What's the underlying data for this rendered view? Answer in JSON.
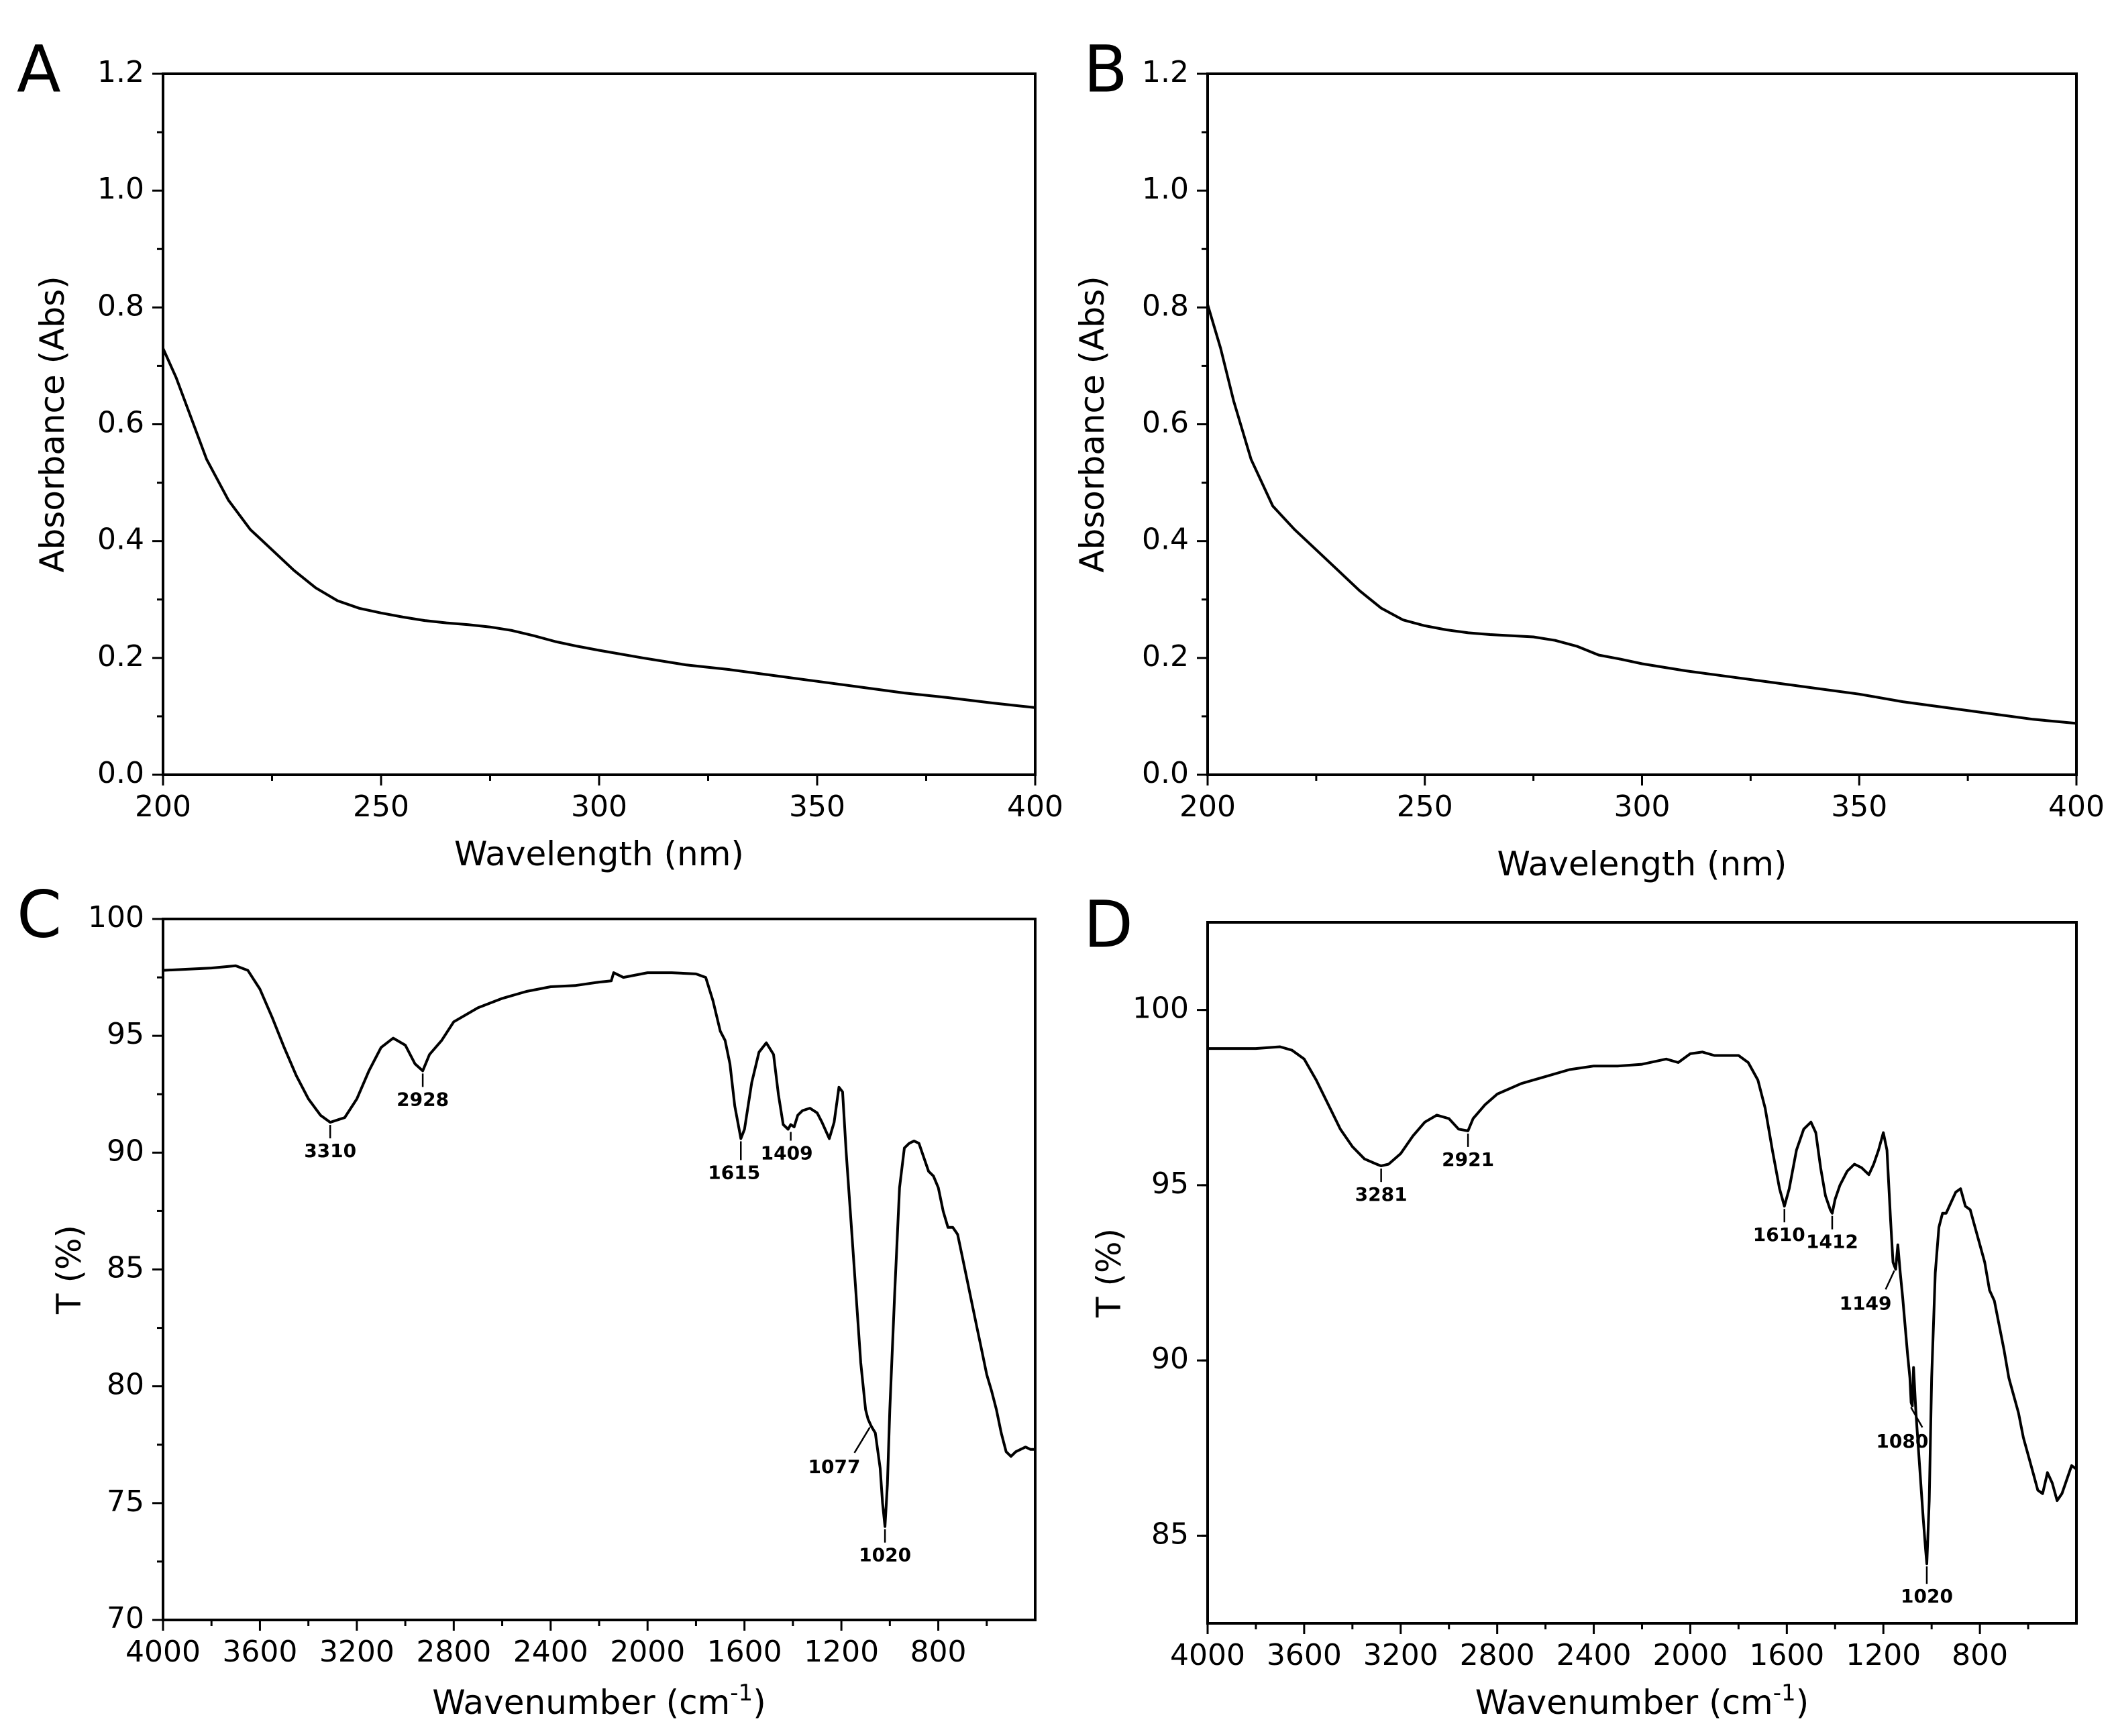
{
  "chart_data": [
    {
      "panel": "A",
      "type": "line",
      "title": "",
      "xlabel": "Wavelength (nm)",
      "ylabel": "Absorbance (Abs)",
      "xlim": [
        200,
        400
      ],
      "ylim": [
        0,
        1.2
      ],
      "x_reversed": false,
      "xticks": [
        200,
        250,
        300,
        350,
        400
      ],
      "xtick_labels": [
        "200",
        "250",
        "300",
        "350",
        "400"
      ],
      "yticks": [
        0,
        0.2,
        0.4,
        0.6,
        0.8,
        1.0,
        1.2
      ],
      "ytick_labels": [
        "0.0",
        "0.2",
        "0.4",
        "0.6",
        "0.8",
        "1.0",
        "1.2"
      ],
      "grid": false,
      "series": [
        {
          "name": "UV spectrum",
          "x": [
            200,
            203,
            206,
            210,
            215,
            220,
            225,
            230,
            235,
            240,
            245,
            250,
            255,
            260,
            265,
            270,
            275,
            280,
            285,
            290,
            295,
            300,
            310,
            320,
            330,
            340,
            350,
            360,
            370,
            380,
            390,
            400
          ],
          "y": [
            0.73,
            0.68,
            0.62,
            0.54,
            0.47,
            0.42,
            0.385,
            0.35,
            0.32,
            0.298,
            0.285,
            0.277,
            0.27,
            0.264,
            0.26,
            0.257,
            0.253,
            0.247,
            0.238,
            0.228,
            0.22,
            0.213,
            0.2,
            0.188,
            0.18,
            0.17,
            0.16,
            0.15,
            0.14,
            0.132,
            0.123,
            0.115
          ]
        }
      ],
      "annotations": []
    },
    {
      "panel": "B",
      "type": "line",
      "title": "",
      "xlabel": "Wavelength (nm)",
      "ylabel": "Absorbance (Abs)",
      "xlim": [
        200,
        400
      ],
      "ylim": [
        0,
        1.2
      ],
      "x_reversed": false,
      "xticks": [
        200,
        250,
        300,
        350,
        400
      ],
      "xtick_labels": [
        "200",
        "250",
        "300",
        "350",
        "400"
      ],
      "yticks": [
        0,
        0.2,
        0.4,
        0.6,
        0.8,
        1.0,
        1.2
      ],
      "ytick_labels": [
        "0.0",
        "0.2",
        "0.4",
        "0.6",
        "0.8",
        "1.0",
        "1.2"
      ],
      "grid": false,
      "series": [
        {
          "name": "UV spectrum",
          "x": [
            200,
            203,
            206,
            210,
            215,
            220,
            225,
            230,
            235,
            240,
            245,
            250,
            255,
            260,
            265,
            270,
            275,
            280,
            285,
            290,
            295,
            300,
            310,
            320,
            330,
            340,
            350,
            360,
            370,
            380,
            390,
            400
          ],
          "y": [
            0.805,
            0.73,
            0.64,
            0.54,
            0.46,
            0.42,
            0.385,
            0.35,
            0.315,
            0.285,
            0.265,
            0.255,
            0.248,
            0.243,
            0.24,
            0.238,
            0.236,
            0.23,
            0.22,
            0.205,
            0.198,
            0.19,
            0.178,
            0.168,
            0.158,
            0.148,
            0.138,
            0.125,
            0.115,
            0.105,
            0.095,
            0.088
          ]
        }
      ],
      "annotations": []
    },
    {
      "panel": "C",
      "type": "line",
      "title": "",
      "xlabel": "Wavenumber (cm",
      "xlabel_sup": "-1",
      "xlabel_end": ")",
      "ylabel": "T (%)",
      "xlim": [
        4000,
        400
      ],
      "ylim": [
        70,
        100
      ],
      "x_reversed": true,
      "xticks": [
        4000,
        3600,
        3200,
        2800,
        2400,
        2000,
        1600,
        1200,
        800
      ],
      "xtick_labels": [
        "4000",
        "3600",
        "3200",
        "2800",
        "2400",
        "2000",
        "1600",
        "1200",
        "800"
      ],
      "yticks": [
        70,
        75,
        80,
        85,
        90,
        95,
        100
      ],
      "ytick_labels": [
        "70",
        "75",
        "80",
        "85",
        "90",
        "95",
        "100"
      ],
      "grid": false,
      "series": [
        {
          "name": "FT-IR spectrum",
          "x": [
            4000,
            3900,
            3800,
            3700,
            3650,
            3600,
            3550,
            3500,
            3450,
            3400,
            3350,
            3310,
            3250,
            3200,
            3150,
            3100,
            3050,
            3000,
            2960,
            2928,
            2900,
            2850,
            2800,
            2700,
            2600,
            2500,
            2400,
            2300,
            2200,
            2150,
            2140,
            2100,
            2000,
            1900,
            1800,
            1760,
            1730,
            1700,
            1680,
            1660,
            1640,
            1615,
            1600,
            1570,
            1540,
            1510,
            1480,
            1460,
            1440,
            1420,
            1409,
            1395,
            1380,
            1360,
            1330,
            1300,
            1280,
            1250,
            1230,
            1210,
            1195,
            1180,
            1160,
            1140,
            1120,
            1100,
            1090,
            1077,
            1060,
            1040,
            1030,
            1020,
            1010,
            1000,
            980,
            960,
            940,
            920,
            900,
            880,
            860,
            840,
            820,
            800,
            780,
            760,
            740,
            720,
            700,
            680,
            660,
            640,
            620,
            600,
            580,
            560,
            540,
            520,
            500,
            480,
            460,
            440,
            420,
            400
          ],
          "y": [
            97.8,
            97.85,
            97.9,
            98.0,
            97.8,
            97.0,
            95.8,
            94.5,
            93.3,
            92.3,
            91.6,
            91.3,
            91.5,
            92.3,
            93.5,
            94.5,
            94.9,
            94.6,
            93.8,
            93.5,
            94.2,
            94.8,
            95.6,
            96.2,
            96.6,
            96.9,
            97.1,
            97.15,
            97.3,
            97.35,
            97.7,
            97.5,
            97.7,
            97.7,
            97.65,
            97.5,
            96.5,
            95.2,
            94.8,
            93.8,
            92.0,
            90.6,
            91.0,
            93.0,
            94.3,
            94.7,
            94.2,
            92.5,
            91.2,
            91.0,
            91.2,
            91.1,
            91.6,
            91.8,
            91.9,
            91.7,
            91.3,
            90.6,
            91.3,
            92.8,
            92.6,
            90.0,
            87.0,
            84.0,
            81.0,
            79.0,
            78.6,
            78.3,
            78.0,
            76.5,
            75.0,
            74.0,
            75.8,
            79.0,
            84.0,
            88.5,
            90.2,
            90.4,
            90.5,
            90.4,
            89.8,
            89.2,
            89.0,
            88.5,
            87.5,
            86.8,
            86.8,
            86.5,
            85.5,
            84.5,
            83.5,
            82.5,
            81.5,
            80.5,
            79.8,
            79.0,
            78.0,
            77.2,
            77.0,
            77.2,
            77.3,
            77.4,
            77.3,
            77.3
          ]
        }
      ],
      "annotations": [
        {
          "label": "3310",
          "x": 3310,
          "y": 91.3
        },
        {
          "label": "2928",
          "x": 2928,
          "y": 93.5
        },
        {
          "label": "1615",
          "x": 1615,
          "y": 90.6
        },
        {
          "label": "1409",
          "x": 1409,
          "y": 91.0
        },
        {
          "label": "1077",
          "x": 1077,
          "y": 78.3
        },
        {
          "label": "1020",
          "x": 1020,
          "y": 74.0
        }
      ]
    },
    {
      "panel": "D",
      "type": "line",
      "title": "",
      "xlabel": "Wavenumber (cm",
      "xlabel_sup": "-1",
      "xlabel_end": ")",
      "ylabel": "T (%)",
      "xlim": [
        4000,
        400
      ],
      "ylim": [
        82.5,
        102.5
      ],
      "x_reversed": true,
      "xticks": [
        4000,
        3600,
        3200,
        2800,
        2400,
        2000,
        1600,
        1200,
        800
      ],
      "xtick_labels": [
        "4000",
        "3600",
        "3200",
        "2800",
        "2400",
        "2000",
        "1600",
        "1200",
        "800"
      ],
      "yticks": [
        85,
        90,
        95,
        100
      ],
      "ytick_labels": [
        "85",
        "90",
        "95",
        "100"
      ],
      "grid": false,
      "series": [
        {
          "name": "FT-IR spectrum",
          "x": [
            4000,
            3900,
            3800,
            3700,
            3650,
            3600,
            3550,
            3500,
            3450,
            3400,
            3350,
            3300,
            3281,
            3250,
            3200,
            3150,
            3100,
            3050,
            3000,
            2960,
            2921,
            2900,
            2850,
            2800,
            2700,
            2600,
            2500,
            2400,
            2300,
            2200,
            2100,
            2050,
            2000,
            1950,
            1900,
            1800,
            1760,
            1720,
            1690,
            1660,
            1630,
            1610,
            1590,
            1560,
            1530,
            1500,
            1480,
            1460,
            1440,
            1420,
            1412,
            1400,
            1380,
            1350,
            1320,
            1290,
            1260,
            1240,
            1220,
            1200,
            1185,
            1170,
            1160,
            1149,
            1140,
            1130,
            1120,
            1110,
            1100,
            1090,
            1085,
            1080,
            1075,
            1065,
            1050,
            1035,
            1025,
            1020,
            1010,
            1000,
            985,
            970,
            955,
            940,
            920,
            900,
            880,
            860,
            840,
            820,
            800,
            780,
            760,
            740,
            720,
            700,
            680,
            660,
            640,
            620,
            600,
            580,
            560,
            540,
            520,
            500,
            480,
            460,
            440,
            420,
            400
          ],
          "y": [
            98.9,
            98.9,
            98.9,
            98.95,
            98.85,
            98.6,
            98.0,
            97.3,
            96.6,
            96.1,
            95.75,
            95.6,
            95.55,
            95.6,
            95.9,
            96.4,
            96.8,
            97.0,
            96.9,
            96.6,
            96.55,
            96.9,
            97.3,
            97.6,
            97.9,
            98.1,
            98.3,
            98.4,
            98.4,
            98.45,
            98.6,
            98.5,
            98.75,
            98.8,
            98.7,
            98.7,
            98.5,
            98.0,
            97.2,
            96.0,
            94.9,
            94.4,
            94.9,
            96.0,
            96.6,
            96.8,
            96.5,
            95.5,
            94.7,
            94.3,
            94.2,
            94.6,
            95.0,
            95.4,
            95.6,
            95.5,
            95.3,
            95.6,
            96.0,
            96.5,
            96.0,
            94.0,
            92.8,
            92.6,
            93.3,
            92.5,
            91.8,
            91.0,
            90.2,
            89.5,
            88.8,
            88.7,
            89.8,
            88.5,
            87.0,
            85.5,
            84.6,
            84.2,
            86.0,
            89.5,
            92.5,
            93.8,
            94.2,
            94.2,
            94.5,
            94.8,
            94.9,
            94.4,
            94.3,
            93.8,
            93.3,
            92.8,
            92.0,
            91.7,
            91.0,
            90.3,
            89.5,
            89.0,
            88.5,
            87.8,
            87.3,
            86.8,
            86.3,
            86.2,
            86.8,
            86.5,
            86.0,
            86.2,
            86.6,
            87.0,
            86.9
          ]
        }
      ],
      "annotations": [
        {
          "label": "3281",
          "x": 3281,
          "y": 95.55
        },
        {
          "label": "2921",
          "x": 2921,
          "y": 96.55
        },
        {
          "label": "1610",
          "x": 1610,
          "y": 94.4
        },
        {
          "label": "1412",
          "x": 1412,
          "y": 94.2
        },
        {
          "label": "1149",
          "x": 1149,
          "y": 92.6
        },
        {
          "label": "1080",
          "x": 1080,
          "y": 88.7
        },
        {
          "label": "1020",
          "x": 1020,
          "y": 84.2
        }
      ]
    }
  ]
}
